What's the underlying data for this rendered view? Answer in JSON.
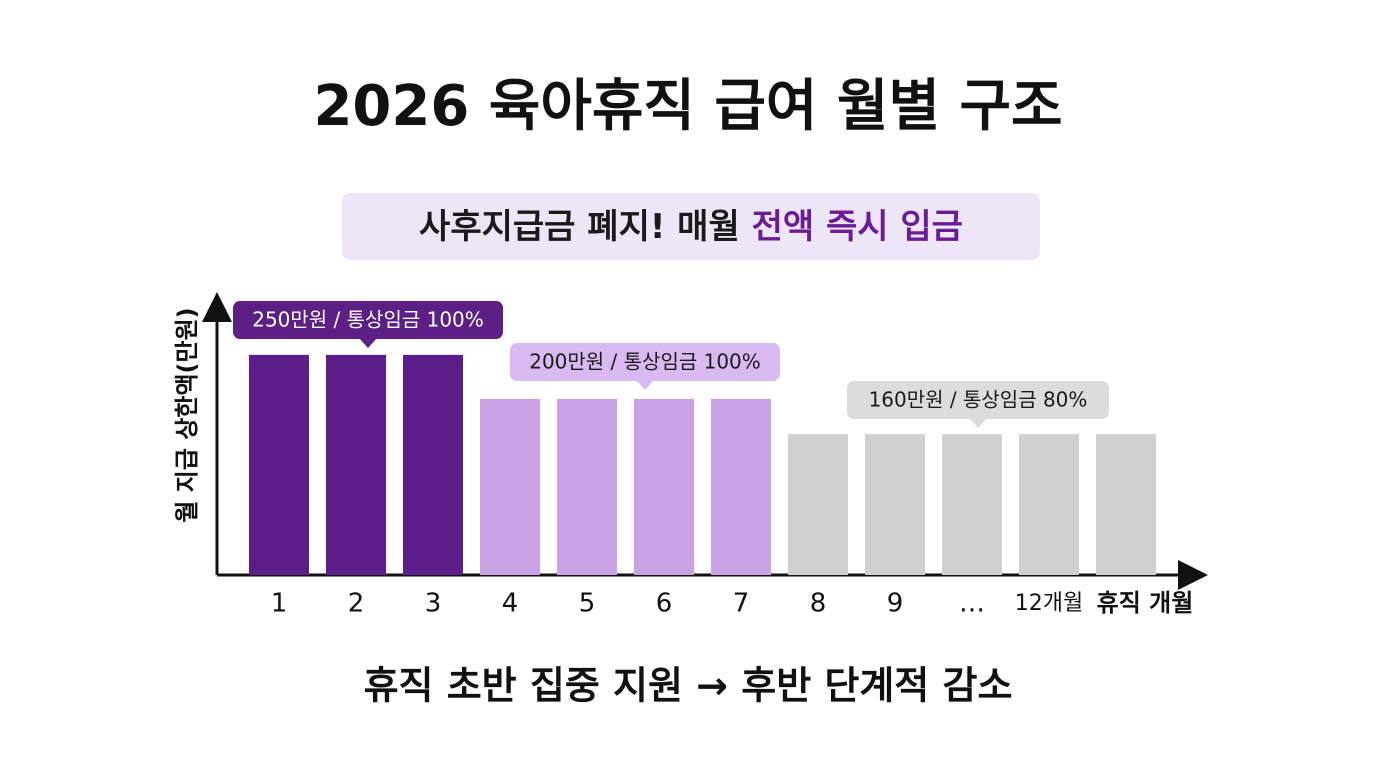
{
  "chart_data": {
    "type": "bar",
    "title": "2026 육아휴직 급여 월별 구조",
    "subtitle": [
      {
        "text": "사후지급금 폐지! 매월 ",
        "color": "#1a1a1a"
      },
      {
        "text": "전액 즉시 입금",
        "color": "#6a1b9a"
      }
    ],
    "y_label": "월 지급 상한액(만원)",
    "x_label": "휴직 개월",
    "categories": [
      "1",
      "2",
      "3",
      "4",
      "5",
      "6",
      "7",
      "8",
      "9",
      "…",
      "12개월",
      null
    ],
    "values": [
      250,
      250,
      250,
      200,
      200,
      200,
      200,
      160,
      160,
      160,
      160,
      160
    ],
    "colors": [
      "#5c1d8a",
      "#5c1d8a",
      "#5c1d8a",
      "#c9a2e6",
      "#c9a2e6",
      "#c9a2e6",
      "#c9a2e6",
      "#d0d0d0",
      "#d0d0d0",
      "#d0d0d0",
      "#d0d0d0",
      "#d0d0d0"
    ],
    "ylim": [
      0,
      318
    ],
    "annotations": [
      {
        "text": "250만원 / 통상임금 100%",
        "color": "#5b1f86",
        "text_color": "#ffffff"
      },
      {
        "text": "200만원 / 통상임금 100%",
        "color": "#d8baf0",
        "text_color": "#1a1a1a"
      },
      {
        "text": "160만원 / 통상임금 80%",
        "color": "#dcdcdc",
        "text_color": "#1a1a1a"
      }
    ],
    "caption": "휴직 초반 집중 지원 → 후반 단계적 감소"
  }
}
